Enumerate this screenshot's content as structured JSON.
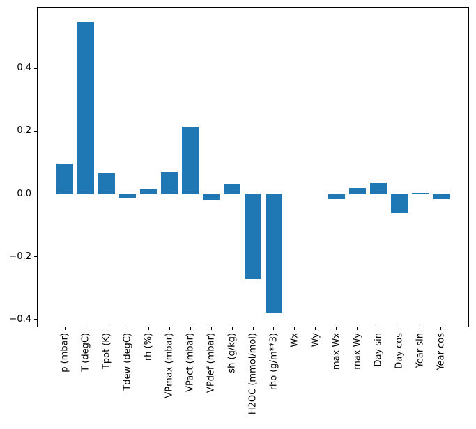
{
  "chart_data": {
    "type": "bar",
    "title": "",
    "xlabel": "",
    "ylabel": "",
    "categories": [
      "p (mbar)",
      "T (degC)",
      "Tpot (K)",
      "Tdew (degC)",
      "rh (%)",
      "VPmax (mbar)",
      "VPact (mbar)",
      "VPdef (mbar)",
      "sh (g/kg)",
      "H2OC (mmol/mol)",
      "rho (g/m**3)",
      "Wx",
      "Wy",
      "max Wx",
      "max Wy",
      "Day sin",
      "Day cos",
      "Year sin",
      "Year cos"
    ],
    "values": [
      0.096,
      0.55,
      0.067,
      -0.013,
      0.014,
      0.071,
      0.215,
      -0.018,
      0.033,
      -0.272,
      -0.378,
      0.0,
      0.0,
      -0.017,
      0.018,
      0.035,
      -0.06,
      0.003,
      -0.016
    ],
    "yticks": [
      {
        "value": 0.4,
        "label": "0.4"
      },
      {
        "value": 0.2,
        "label": "0.2"
      },
      {
        "value": 0.0,
        "label": "0.0"
      },
      {
        "value": -0.2,
        "label": "−0.2"
      },
      {
        "value": -0.4,
        "label": "−0.4"
      }
    ],
    "ylim": [
      -0.425,
      0.596
    ],
    "xlim": [
      -1.34,
      19.34
    ],
    "bar_width_fraction": 0.8,
    "x_tick_rotation_deg": 90,
    "grid": false,
    "legend": null,
    "bar_color": "#1f77b4",
    "axis_color": "#000000",
    "text_color": "#000000",
    "background_color": "#ffffff"
  }
}
